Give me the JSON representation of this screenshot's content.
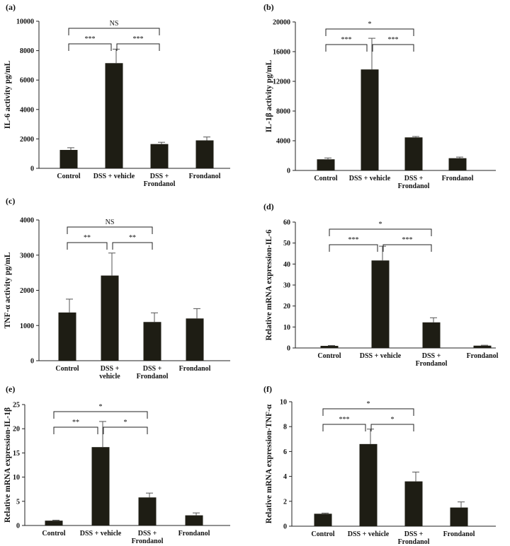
{
  "chart_data": [
    {
      "panel": "(a)",
      "type": "bar",
      "ylabel": "IL-6 activity pg/mL",
      "categories": [
        [
          "Control"
        ],
        [
          "DSS + vehicle"
        ],
        [
          "DSS +",
          "Frondanol"
        ],
        [
          "Frondanol"
        ]
      ],
      "values": [
        1250,
        7150,
        1650,
        1900
      ],
      "errors": [
        150,
        950,
        120,
        230
      ],
      "ylim": [
        0,
        10000
      ],
      "yticks": [
        0,
        2000,
        4000,
        6000,
        8000,
        10000
      ],
      "yticklabels": [
        "0",
        "2000",
        "4000",
        "6000",
        "8000",
        "10000"
      ],
      "significance": [
        {
          "from": 0,
          "to": 1,
          "label": "***"
        },
        {
          "from": 1,
          "to": 2,
          "label": "***"
        },
        {
          "from": 0,
          "to": 2,
          "label": "NS"
        }
      ]
    },
    {
      "panel": "(b)",
      "type": "bar",
      "ylabel": "IL-1β activity pg/mL",
      "categories": [
        [
          "Control"
        ],
        [
          "DSS + vehicle"
        ],
        [
          "DSS +",
          "Frondanol"
        ],
        [
          "Frondanol"
        ]
      ],
      "values": [
        1500,
        13600,
        4450,
        1650
      ],
      "errors": [
        180,
        4200,
        120,
        150
      ],
      "ylim": [
        0,
        20000
      ],
      "yticks": [
        0,
        4000,
        8000,
        12000,
        16000,
        20000
      ],
      "yticklabels": [
        "0",
        "4000",
        "8000",
        "12000",
        "16000",
        "20000"
      ],
      "significance": [
        {
          "from": 0,
          "to": 1,
          "label": "***"
        },
        {
          "from": 1,
          "to": 2,
          "label": "***"
        },
        {
          "from": 0,
          "to": 2,
          "label": "*"
        }
      ]
    },
    {
      "panel": "(c)",
      "type": "bar",
      "ylabel": "TNF-α activity pg/mL",
      "categories": [
        [
          "Control"
        ],
        [
          "DSS +",
          "vehicle"
        ],
        [
          "DSS +",
          "Frondanol"
        ],
        [
          "Frondanol"
        ]
      ],
      "values": [
        1370,
        2420,
        1100,
        1200
      ],
      "errors": [
        380,
        640,
        260,
        280
      ],
      "ylim": [
        0,
        4000
      ],
      "yticks": [
        0,
        1000,
        2000,
        3000,
        4000
      ],
      "yticklabels": [
        "0",
        "1000",
        "2000",
        "3000",
        "4000"
      ],
      "significance": [
        {
          "from": 0,
          "to": 1,
          "label": "**"
        },
        {
          "from": 1,
          "to": 2,
          "label": "**"
        },
        {
          "from": 0,
          "to": 2,
          "label": "NS"
        }
      ]
    },
    {
      "panel": "(d)",
      "type": "bar",
      "ylabel": "Relative mRNA expression-IL-6",
      "categories": [
        [
          "Control"
        ],
        [
          "DSS + vehicle"
        ],
        [
          "DSS +",
          "Frondanol"
        ],
        [
          "Frondanol"
        ]
      ],
      "values": [
        1,
        41.7,
        12.2,
        1.1
      ],
      "errors": [
        0.2,
        6.8,
        2.2,
        0.2
      ],
      "ylim": [
        0,
        60
      ],
      "yticks": [
        0,
        10,
        20,
        30,
        40,
        50,
        60
      ],
      "yticklabels": [
        "0",
        "10",
        "20",
        "30",
        "40",
        "50",
        "60"
      ],
      "significance": [
        {
          "from": 0,
          "to": 1,
          "label": "***"
        },
        {
          "from": 1,
          "to": 2,
          "label": "***"
        },
        {
          "from": 0,
          "to": 2,
          "label": "*"
        }
      ]
    },
    {
      "panel": "(e)",
      "type": "bar",
      "ylabel": "Relative mRNA expression-IL-1β",
      "categories": [
        [
          "Control"
        ],
        [
          "DSS + vehicle"
        ],
        [
          "DSS +",
          "Frondanol"
        ],
        [
          "Frondanol"
        ]
      ],
      "values": [
        1,
        16.2,
        5.8,
        2.1
      ],
      "errors": [
        0.1,
        5.3,
        0.9,
        0.5
      ],
      "ylim": [
        0,
        25
      ],
      "yticks": [
        0,
        5,
        10,
        15,
        20,
        25
      ],
      "yticklabels": [
        "0",
        "5",
        "10",
        "15",
        "20",
        "25"
      ],
      "significance": [
        {
          "from": 0,
          "to": 1,
          "label": "**"
        },
        {
          "from": 1,
          "to": 2,
          "label": "*"
        },
        {
          "from": 0,
          "to": 2,
          "label": "*"
        }
      ]
    },
    {
      "panel": "(f)",
      "type": "bar",
      "ylabel": "Relative mRNA expression-TNF-α",
      "categories": [
        [
          "Control"
        ],
        [
          "DSS + vehicle"
        ],
        [
          "DSS +",
          "Frondanol"
        ],
        [
          "Frondanol"
        ]
      ],
      "values": [
        1,
        6.6,
        3.6,
        1.5
      ],
      "errors": [
        0.05,
        1.2,
        0.75,
        0.45
      ],
      "ylim": [
        0,
        10
      ],
      "yticks": [
        0,
        2,
        4,
        6,
        8,
        10
      ],
      "yticklabels": [
        "0",
        "2",
        "4",
        "6",
        "8",
        "10"
      ],
      "significance": [
        {
          "from": 0,
          "to": 1,
          "label": "***"
        },
        {
          "from": 1,
          "to": 2,
          "label": "*"
        },
        {
          "from": 0,
          "to": 2,
          "label": "*"
        }
      ]
    }
  ]
}
